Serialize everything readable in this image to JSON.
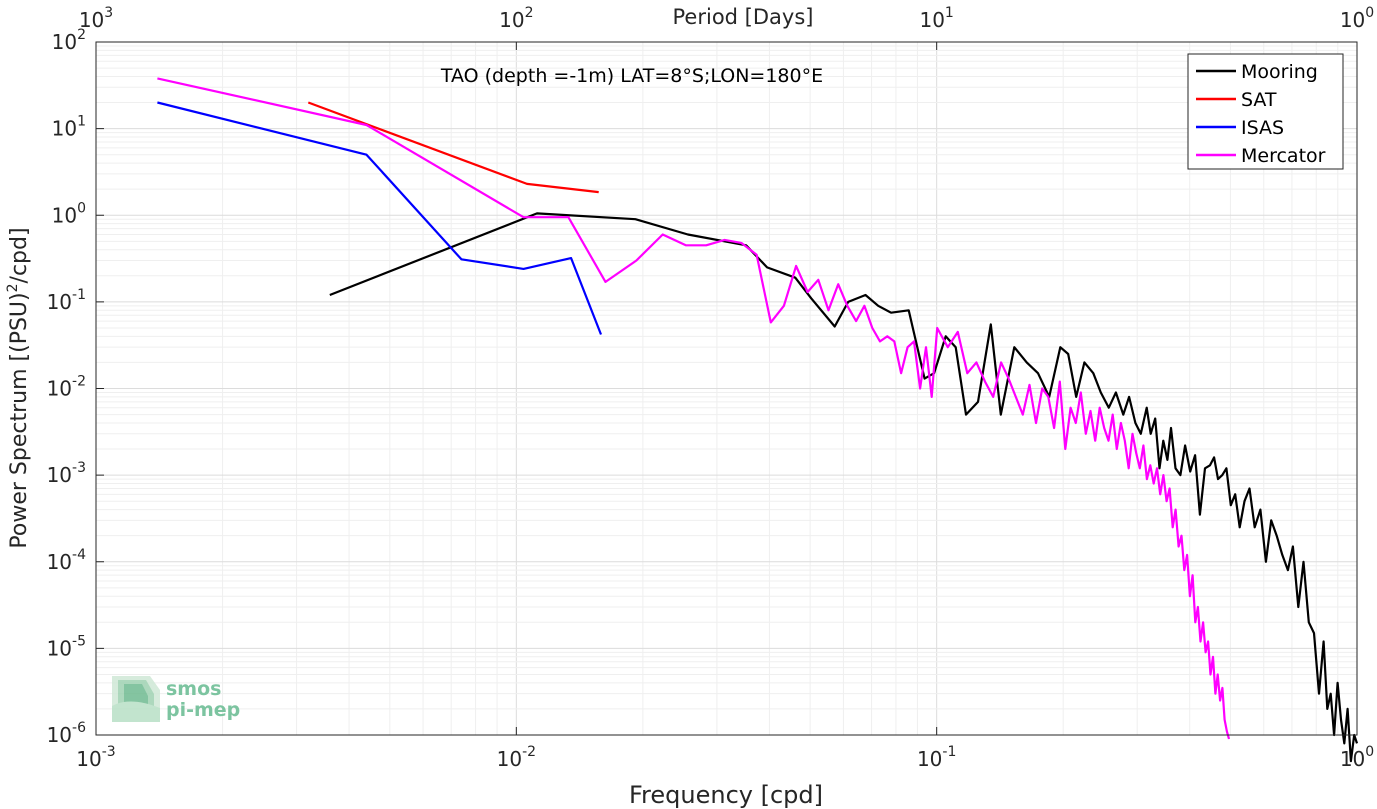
{
  "chart_data": {
    "type": "line",
    "title": "TAO (depth =-1m) LAT=8°S;LON=180°E",
    "xlabel": "Frequency [cpd]",
    "ylabel": "Power Spectrum [(PSU)",
    "ylabel_sup": "2",
    "ylabel_tail": "/cpd]",
    "top_xlabel": "Period [Days]",
    "x_scale": "log",
    "y_scale": "log",
    "xlim": [
      0.001,
      1
    ],
    "ylim": [
      1e-06,
      100
    ],
    "grid": true,
    "legend_position": "top-right",
    "x_ticks": [
      {
        "base": "10",
        "exp": "-3",
        "value": 0.001
      },
      {
        "base": "10",
        "exp": "-2",
        "value": 0.01
      },
      {
        "base": "10",
        "exp": "-1",
        "value": 0.1
      },
      {
        "base": "10",
        "exp": "0",
        "value": 1
      }
    ],
    "top_ticks": [
      {
        "base": "10",
        "exp": "3",
        "value": 0.001
      },
      {
        "base": "10",
        "exp": "2",
        "value": 0.01
      },
      {
        "base": "10",
        "exp": "1",
        "value": 0.1
      },
      {
        "base": "10",
        "exp": "0",
        "value": 1
      }
    ],
    "y_ticks": [
      {
        "base": "10",
        "exp": "2",
        "value": 100
      },
      {
        "base": "10",
        "exp": "1",
        "value": 10
      },
      {
        "base": "10",
        "exp": "0",
        "value": 1
      },
      {
        "base": "10",
        "exp": "-1",
        "value": 0.1
      },
      {
        "base": "10",
        "exp": "-2",
        "value": 0.01
      },
      {
        "base": "10",
        "exp": "-3",
        "value": 0.001
      },
      {
        "base": "10",
        "exp": "-4",
        "value": 0.0001
      },
      {
        "base": "10",
        "exp": "-5",
        "value": 1e-05
      },
      {
        "base": "10",
        "exp": "-6",
        "value": 1e-06
      }
    ],
    "series": [
      {
        "name": "Mooring",
        "color": "#000000",
        "x": [
          0.0036,
          0.0112,
          0.0192,
          0.0256,
          0.0352,
          0.0395,
          0.0461,
          0.0503,
          0.0572,
          0.0616,
          0.0677,
          0.0726,
          0.0779,
          0.0858,
          0.0936,
          0.0986,
          0.1051,
          0.111,
          0.1174,
          0.1254,
          0.1345,
          0.1421,
          0.153,
          0.1638,
          0.1742,
          0.1852,
          0.1968,
          0.2055,
          0.2148,
          0.2246,
          0.2359,
          0.2458,
          0.2568,
          0.267,
          0.278,
          0.287,
          0.297,
          0.306,
          0.316,
          0.323,
          0.331,
          0.339,
          0.346,
          0.354,
          0.361,
          0.37,
          0.38,
          0.39,
          0.401,
          0.412,
          0.423,
          0.435,
          0.447,
          0.457,
          0.467,
          0.478,
          0.489,
          0.501,
          0.513,
          0.526,
          0.54,
          0.555,
          0.571,
          0.589,
          0.607,
          0.625,
          0.644,
          0.664,
          0.685,
          0.704,
          0.725,
          0.746,
          0.768,
          0.79,
          0.812,
          0.833,
          0.85,
          0.866,
          0.882,
          0.899,
          0.916,
          0.933,
          0.95,
          0.967,
          0.985,
          1.0
        ],
        "y": [
          0.12,
          1.05,
          0.9,
          0.6,
          0.45,
          0.25,
          0.19,
          0.11,
          0.052,
          0.1,
          0.12,
          0.09,
          0.075,
          0.08,
          0.013,
          0.015,
          0.04,
          0.03,
          0.005,
          0.007,
          0.055,
          0.005,
          0.03,
          0.02,
          0.015,
          0.008,
          0.03,
          0.025,
          0.008,
          0.02,
          0.015,
          0.009,
          0.006,
          0.009,
          0.005,
          0.008,
          0.004,
          0.003,
          0.006,
          0.003,
          0.0045,
          0.0012,
          0.0025,
          0.0015,
          0.0035,
          0.0012,
          0.001,
          0.0022,
          0.0011,
          0.0017,
          0.00035,
          0.0012,
          0.0013,
          0.0016,
          0.0009,
          0.001,
          0.0012,
          0.00045,
          0.0006,
          0.00025,
          0.0005,
          0.0007,
          0.00025,
          0.0004,
          0.0001,
          0.0003,
          0.0002,
          0.00012,
          8e-05,
          0.00015,
          3e-05,
          0.0001,
          2e-05,
          1.5e-05,
          3e-06,
          1.2e-05,
          2e-06,
          3e-06,
          1e-06,
          4e-06,
          1.5e-06,
          8e-07,
          2e-06,
          5e-07,
          1e-06,
          8e-07
        ]
      },
      {
        "name": "SAT",
        "color": "#ff0000",
        "x": [
          0.0032,
          0.0106,
          0.0157
        ],
        "y": [
          20,
          2.3,
          1.85
        ]
      },
      {
        "name": "ISAS",
        "color": "#0000ff",
        "x": [
          0.0014,
          0.0044,
          0.0074,
          0.0104,
          0.0135,
          0.0159
        ],
        "y": [
          20,
          5.0,
          0.31,
          0.24,
          0.32,
          0.042
        ]
      },
      {
        "name": "Mercator",
        "color": "#ff00ff",
        "x": [
          0.0014,
          0.0044,
          0.0104,
          0.0133,
          0.0163,
          0.0193,
          0.0223,
          0.0253,
          0.0283,
          0.0313,
          0.0343,
          0.0373,
          0.0403,
          0.0433,
          0.0463,
          0.0493,
          0.0523,
          0.0553,
          0.0583,
          0.0613,
          0.0643,
          0.0673,
          0.0703,
          0.0733,
          0.0763,
          0.0793,
          0.0823,
          0.0853,
          0.0883,
          0.0913,
          0.0943,
          0.0973,
          0.1003,
          0.1063,
          0.1123,
          0.1183,
          0.1243,
          0.1303,
          0.1363,
          0.1423,
          0.1483,
          0.1543,
          0.1603,
          0.1663,
          0.1723,
          0.1783,
          0.1843,
          0.1903,
          0.1963,
          0.2023,
          0.2083,
          0.2143,
          0.2203,
          0.2263,
          0.2323,
          0.2383,
          0.2443,
          0.2503,
          0.2563,
          0.2623,
          0.2683,
          0.2743,
          0.2803,
          0.2863,
          0.2923,
          0.2983,
          0.3043,
          0.3103,
          0.3163,
          0.3223,
          0.3283,
          0.3343,
          0.3403,
          0.3463,
          0.3523,
          0.3583,
          0.3643,
          0.3703,
          0.3763,
          0.3823,
          0.3883,
          0.3943,
          0.4003,
          0.4063,
          0.4123,
          0.4183,
          0.4243,
          0.4303,
          0.4363,
          0.4423,
          0.4483,
          0.4543,
          0.4603,
          0.4663,
          0.4723,
          0.4783,
          0.4843,
          0.4903,
          0.496
        ],
        "y": [
          38,
          11,
          0.95,
          0.95,
          0.17,
          0.3,
          0.6,
          0.45,
          0.45,
          0.52,
          0.48,
          0.35,
          0.058,
          0.09,
          0.26,
          0.13,
          0.18,
          0.08,
          0.16,
          0.09,
          0.06,
          0.09,
          0.05,
          0.035,
          0.04,
          0.035,
          0.015,
          0.03,
          0.035,
          0.01,
          0.03,
          0.008,
          0.05,
          0.03,
          0.045,
          0.015,
          0.02,
          0.012,
          0.008,
          0.02,
          0.013,
          0.008,
          0.005,
          0.011,
          0.004,
          0.01,
          0.008,
          0.0035,
          0.012,
          0.002,
          0.006,
          0.004,
          0.009,
          0.003,
          0.0055,
          0.0025,
          0.006,
          0.0035,
          0.0025,
          0.005,
          0.002,
          0.004,
          0.0025,
          0.0012,
          0.003,
          0.0018,
          0.0012,
          0.0022,
          0.0009,
          0.0013,
          0.0008,
          0.0012,
          0.0006,
          0.001,
          0.0005,
          0.0007,
          0.00025,
          0.0004,
          0.00015,
          0.0002,
          8e-05,
          0.00012,
          4e-05,
          7e-05,
          2e-05,
          3e-05,
          1.2e-05,
          2e-05,
          9e-06,
          1.2e-05,
          5e-06,
          8e-06,
          3e-06,
          5e-06,
          2.5e-06,
          3.5e-06,
          1.5e-06,
          1.1e-06,
          9e-07
        ]
      }
    ]
  },
  "logo": {
    "line1": "smos",
    "line2": "pi-mep"
  }
}
